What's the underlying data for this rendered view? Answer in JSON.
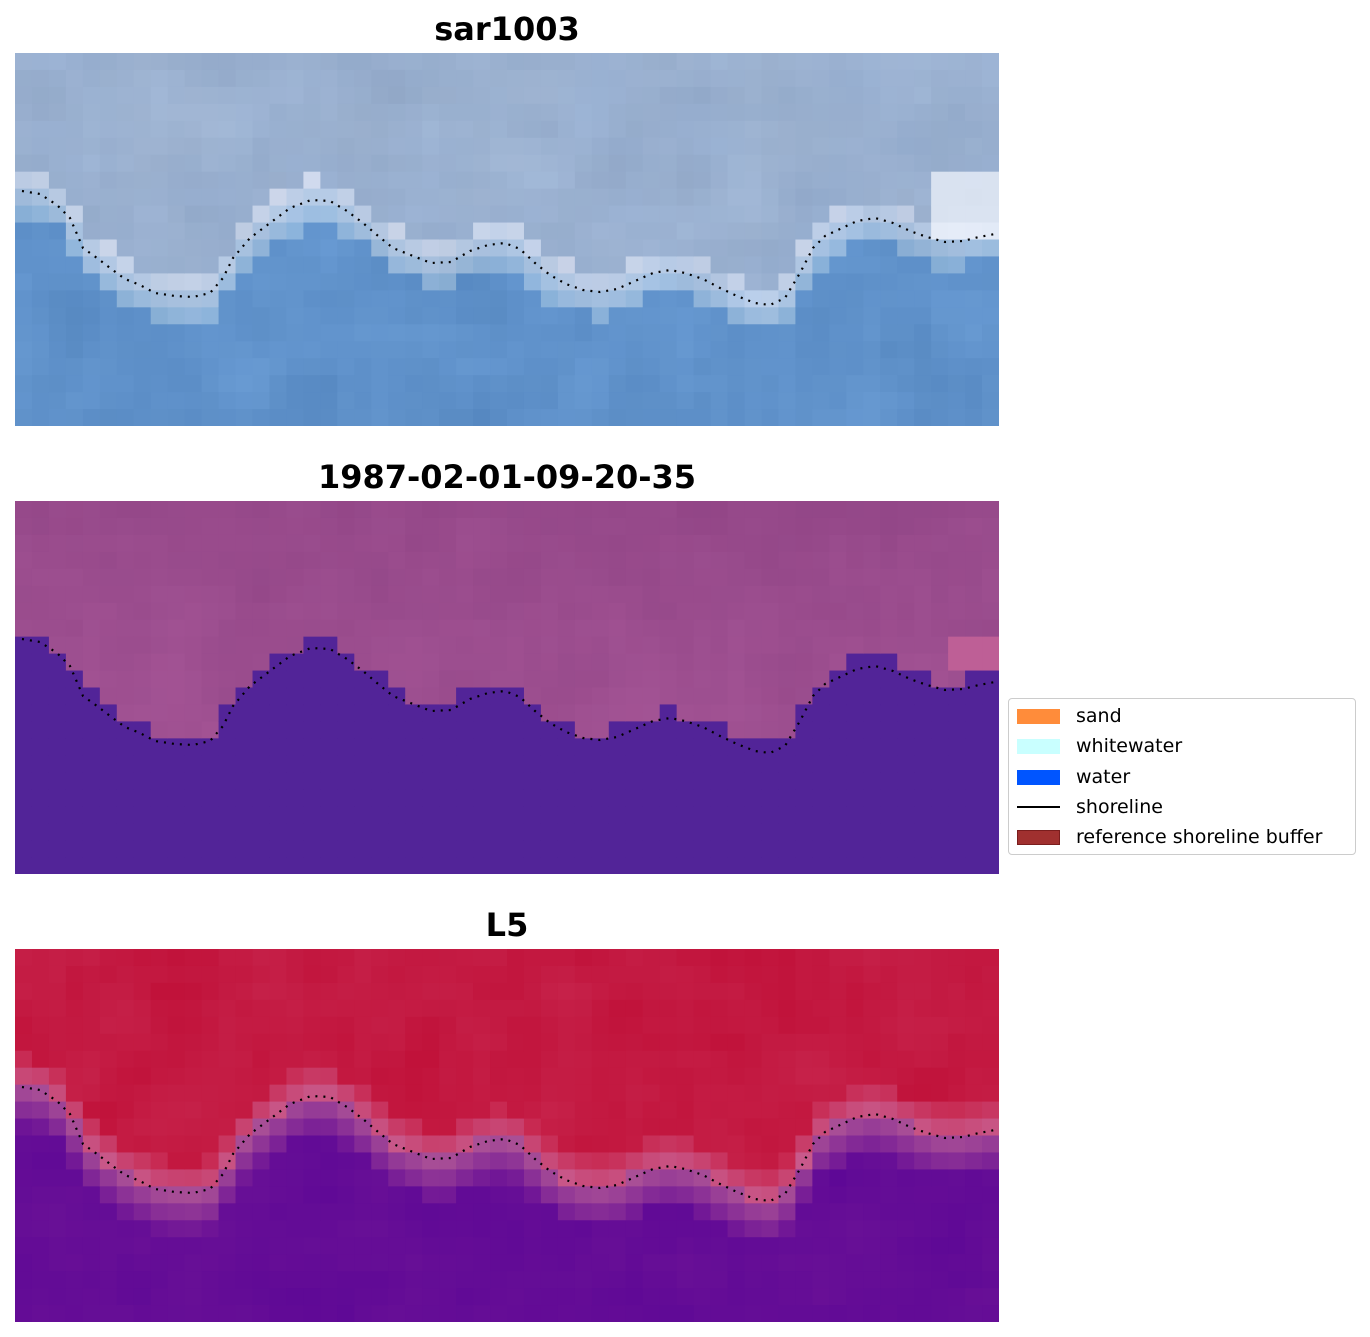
{
  "panels": [
    {
      "title": "sar1003",
      "style": "sar"
    },
    {
      "title": "1987-02-01-09-20-35",
      "style": "classified"
    },
    {
      "title": "L5",
      "style": "index"
    }
  ],
  "legend": {
    "items": [
      {
        "label": "sand",
        "color": "#ff8c3a",
        "kind": "patch"
      },
      {
        "label": "whitewater",
        "color": "#c9ffff",
        "kind": "patch"
      },
      {
        "label": "water",
        "color": "#0055ff",
        "kind": "patch"
      },
      {
        "label": "shoreline",
        "color": "#000000",
        "kind": "line"
      },
      {
        "label": "reference shoreline buffer",
        "color": "#a0302f",
        "kind": "patch"
      }
    ]
  }
}
